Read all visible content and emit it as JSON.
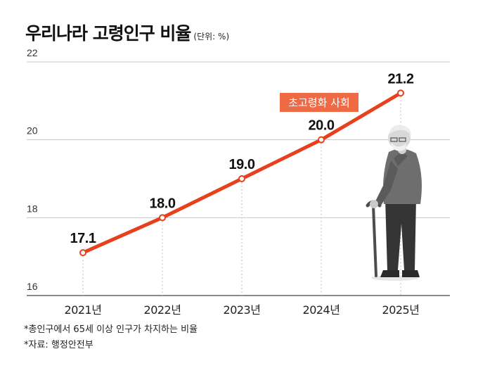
{
  "header": {
    "title": "우리나라 고령인구 비율",
    "unit": "(단위: %)"
  },
  "chart_data": {
    "type": "line",
    "title": "우리나라 고령인구 비율",
    "categories": [
      "2021년",
      "2022년",
      "2023년",
      "2024년",
      "2025년"
    ],
    "series": [
      {
        "values": [
          17.1,
          18.0,
          19.0,
          20.0,
          21.2
        ]
      }
    ],
    "data_labels": [
      "17.1",
      "18.0",
      "19.0",
      "20.0",
      "21.2"
    ],
    "ylim": [
      16,
      22
    ],
    "yticks": [
      16,
      18,
      20,
      22
    ],
    "grid": true,
    "annotation": "초고령화 사회",
    "colors": {
      "line": "#e8401c",
      "annotation_bg": "#ee6a45",
      "grid": "#c8c8c8"
    }
  },
  "notes": [
    "*총인구에서 65세 이상 인구가 차지하는 비율",
    "*자료: 행정안전부"
  ]
}
